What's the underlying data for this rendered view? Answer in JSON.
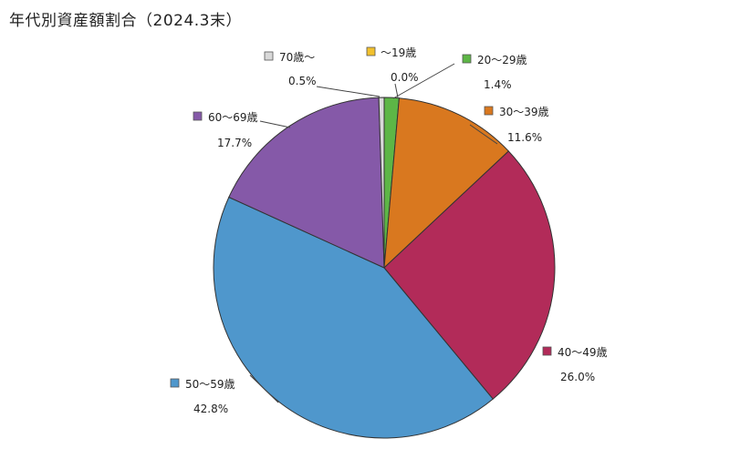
{
  "chart_data": {
    "type": "pie",
    "title": "年代別資産額割合（2024.3末）",
    "slices": [
      {
        "label": "〜19歳",
        "value": 0.0,
        "value_label": "0.0%",
        "color": "#F2C12E"
      },
      {
        "label": "20〜29歳",
        "value": 1.4,
        "value_label": "1.4%",
        "color": "#5DB646"
      },
      {
        "label": "30〜39歳",
        "value": 11.6,
        "value_label": "11.6%",
        "color": "#D9781F"
      },
      {
        "label": "40〜49歳",
        "value": 26.0,
        "value_label": "26.0%",
        "color": "#B22B59"
      },
      {
        "label": "50〜59歳",
        "value": 42.8,
        "value_label": "42.8%",
        "color": "#4F97CC"
      },
      {
        "label": "60〜69歳",
        "value": 17.7,
        "value_label": "17.7%",
        "color": "#8559A8"
      },
      {
        "label": "70歳〜",
        "value": 0.5,
        "value_label": "0.5%",
        "color": "#D9D9D9"
      }
    ]
  }
}
